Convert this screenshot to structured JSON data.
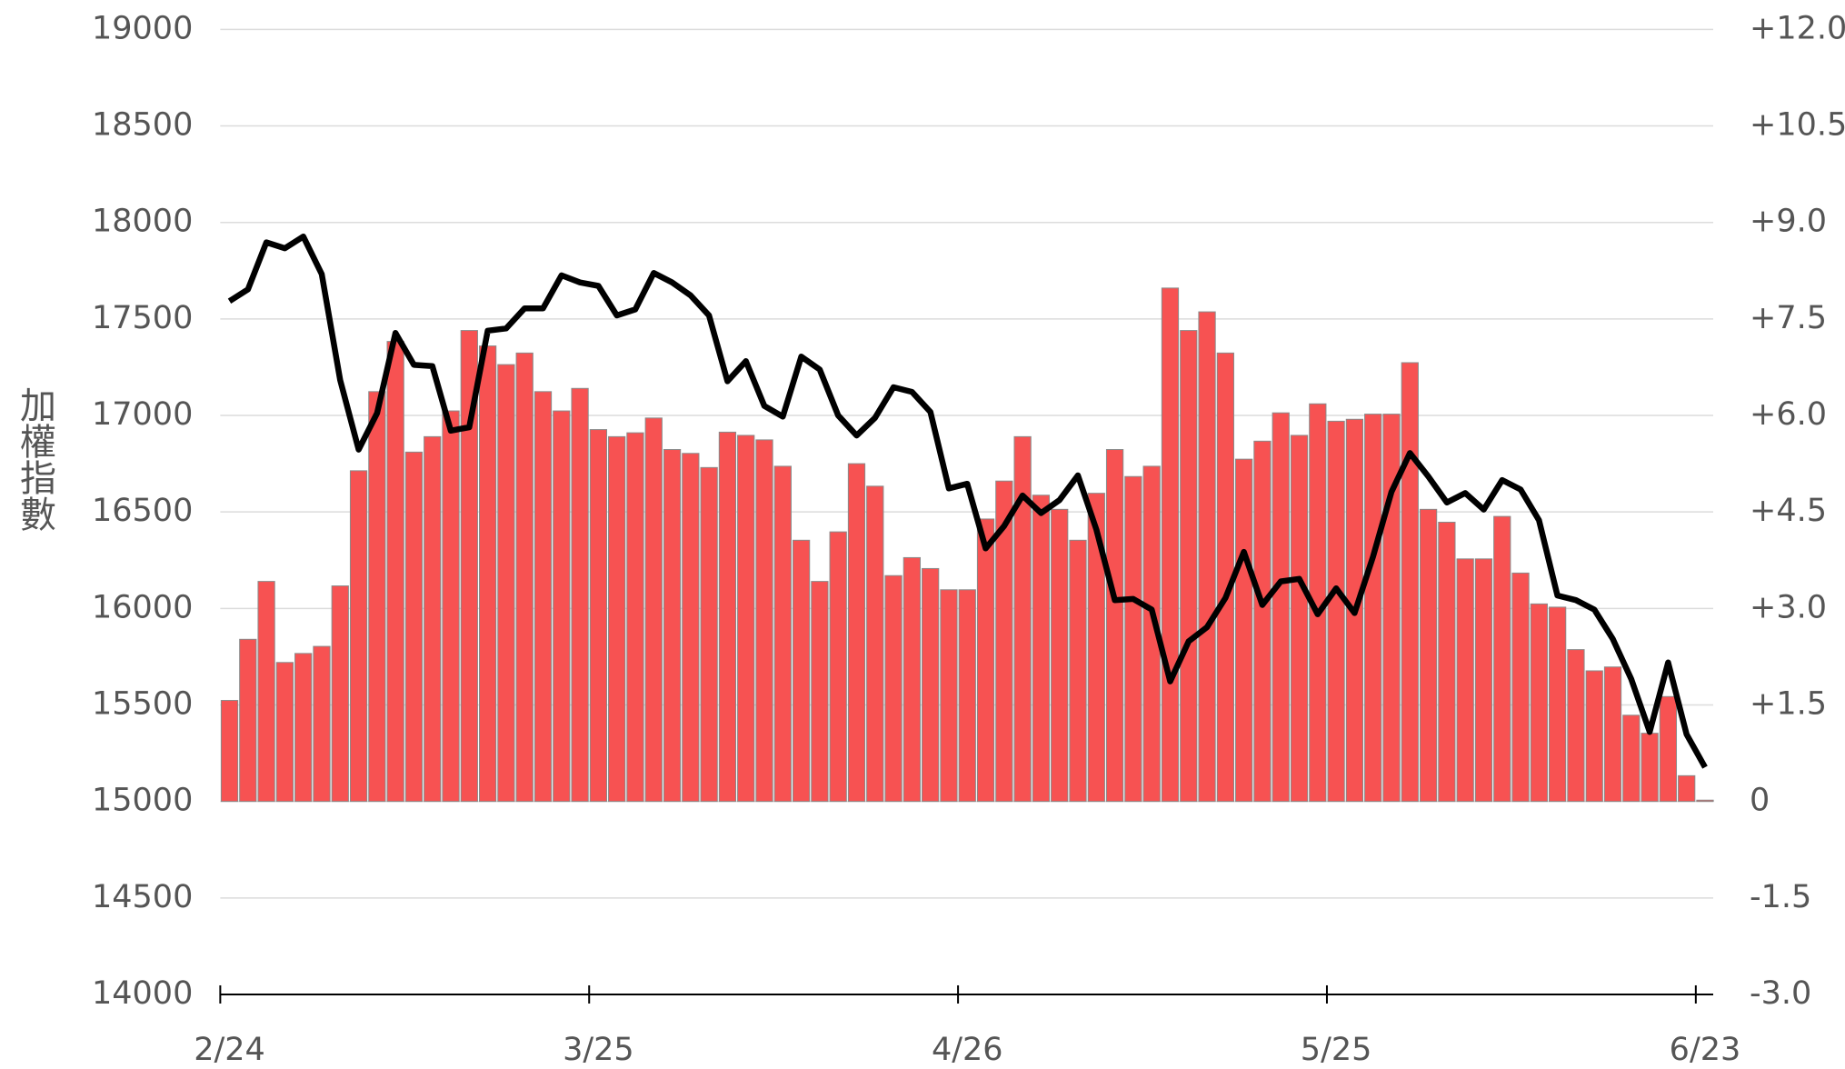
{
  "chart_data": {
    "type": "bar",
    "y_label": "加權指數",
    "categories": [
      "2/24",
      null,
      null,
      null,
      null,
      null,
      null,
      null,
      null,
      null,
      null,
      null,
      null,
      null,
      null,
      null,
      null,
      null,
      null,
      null,
      "3/25",
      null,
      null,
      null,
      null,
      null,
      null,
      null,
      null,
      null,
      null,
      null,
      null,
      null,
      null,
      null,
      null,
      null,
      null,
      null,
      "4/26",
      null,
      null,
      null,
      null,
      null,
      null,
      null,
      null,
      null,
      null,
      null,
      null,
      null,
      null,
      null,
      null,
      null,
      null,
      null,
      "5/25",
      null,
      null,
      null,
      null,
      null,
      null,
      null,
      null,
      null,
      null,
      null,
      null,
      null,
      null,
      null,
      null,
      null,
      null,
      null,
      "6/23"
    ],
    "ylim": [
      14000,
      19000
    ],
    "yticks": [
      14000,
      14500,
      15000,
      15500,
      16000,
      16500,
      17000,
      17500,
      18000,
      18500,
      19000
    ],
    "y2lim": [
      -3,
      12
    ],
    "y2ticks": [
      {
        "value": -3,
        "label": "-3.0"
      },
      {
        "value": -1.5,
        "label": "-1.5"
      },
      0,
      {
        "value": 1.5,
        "label": "+1.5"
      },
      {
        "value": 3,
        "label": "+3.0"
      },
      {
        "value": 4.5,
        "label": "+4.5"
      },
      {
        "value": 6,
        "label": "+6.0"
      },
      {
        "value": 7.5,
        "label": "+7.5"
      },
      {
        "value": 9,
        "label": "+9.0"
      },
      {
        "value": 10.5,
        "label": "+10.5"
      },
      {
        "value": 12,
        "label": "+12.0"
      }
    ],
    "grid": true,
    "series": [
      {
        "type": "bar",
        "axis": "y2",
        "color": "#f75252",
        "values": [
          1.57,
          2.52,
          3.42,
          2.16,
          2.3,
          2.41,
          3.35,
          5.14,
          6.37,
          7.15,
          5.43,
          5.67,
          6.07,
          7.32,
          7.08,
          6.79,
          6.97,
          6.37,
          6.07,
          6.42,
          5.78,
          5.67,
          5.73,
          5.96,
          5.47,
          5.41,
          5.19,
          5.74,
          5.69,
          5.62,
          5.21,
          4.06,
          3.42,
          4.19,
          5.25,
          4.9,
          3.51,
          3.79,
          3.62,
          3.29,
          3.29,
          4.39,
          4.98,
          5.67,
          4.76,
          4.54,
          4.06,
          4.79,
          5.47,
          5.05,
          5.21,
          7.98,
          7.32,
          7.61,
          6.97,
          5.32,
          5.6,
          6.04,
          5.69,
          6.18,
          5.91,
          5.94,
          6.02,
          6.02,
          6.82,
          4.54,
          4.34,
          3.77,
          3.77,
          4.43,
          3.55,
          3.07,
          3.02,
          2.36,
          2.03,
          2.09,
          1.34,
          1.06,
          1.63,
          0.4,
          0.02
        ]
      },
      {
        "type": "line",
        "color": "#000000",
        "values": [
          17592,
          17653,
          17897,
          17866,
          17927,
          17732,
          17183,
          16823,
          17012,
          17427,
          17262,
          17256,
          16921,
          16939,
          17439,
          17451,
          17555,
          17555,
          17726,
          17689,
          17671,
          17518,
          17549,
          17738,
          17689,
          17622,
          17518,
          17177,
          17281,
          17049,
          16994,
          17305,
          17238,
          17000,
          16896,
          16988,
          17146,
          17122,
          17018,
          16622,
          16646,
          16311,
          16427,
          16585,
          16494,
          16561,
          16689,
          16409,
          16043,
          16049,
          15994,
          15622,
          15829,
          15903,
          16055,
          16293,
          16018,
          16140,
          16153,
          15970,
          16104,
          15976,
          16268,
          16604,
          16805,
          16683,
          16549,
          16598,
          16512,
          16665,
          16616,
          16457,
          16067,
          16043,
          15994,
          15842,
          15634,
          15360,
          15720,
          15348,
          15177
        ]
      }
    ]
  }
}
